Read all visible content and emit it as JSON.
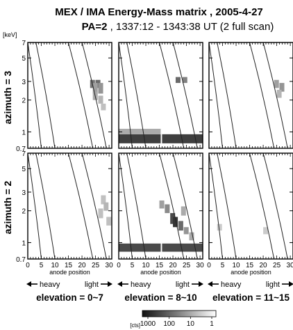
{
  "chart_data": {
    "type": "heatmap",
    "title": "MEX / IMA  Energy-Mass matrix , 2005-4-27",
    "subtitle_bold": "PA=2",
    "subtitle_rest": " , 1337:12 - 1343:38 UT (2 full scan)",
    "y_unit": "[keV]",
    "y_ticks": [
      "7",
      "5",
      "3",
      "2",
      "1",
      "0.7"
    ],
    "y_tick_values": [
      7,
      5,
      3,
      2,
      1,
      0.7
    ],
    "y_scale": "log",
    "ylim": [
      0.7,
      7
    ],
    "x_ticks": [
      "0",
      "5",
      "10",
      "15",
      "20",
      "25",
      "30"
    ],
    "xlim": [
      0,
      31
    ],
    "xlabel": "anode position",
    "row_labels": [
      "azimuth = 3",
      "azimuth = 2"
    ],
    "column_labels": [
      "elevation = 0~7",
      "elevation = 8~10",
      "elevation = 11~15"
    ],
    "arrow_left": "heavy",
    "arrow_right": "light",
    "colorbar_unit": "[cts]",
    "colorbar_ticks": [
      "1000",
      "100",
      "10",
      "1"
    ],
    "grid": false,
    "panels": [
      {
        "row": "azimuth = 3",
        "column": "elevation = 0~7",
        "cells": [
          [
            23,
            2.9,
            2.6,
            3.1,
            0.55
          ],
          [
            25,
            2.9,
            2.6,
            3.1,
            0.6
          ],
          [
            24,
            2.6,
            2.3,
            2.9,
            0.35
          ],
          [
            26,
            2.6,
            2.3,
            2.9,
            0.4
          ],
          [
            24,
            2.2,
            2.0,
            2.4,
            0.3
          ],
          [
            26,
            2.0,
            1.85,
            2.2,
            0.25
          ],
          [
            27,
            1.7,
            1.6,
            1.85,
            0.2
          ]
        ]
      },
      {
        "row": "azimuth = 3",
        "column": "elevation = 8~10",
        "cells": [
          [
            0,
            0.88,
            0.78,
            0.95,
            0.8
          ],
          [
            16,
            0.88,
            0.78,
            0.95,
            0.8
          ],
          [
            0,
            1.0,
            0.95,
            1.07,
            0.3
          ],
          [
            21,
            3.1,
            2.9,
            3.3,
            0.6
          ],
          [
            23.5,
            3.1,
            2.9,
            3.3,
            0.5
          ]
        ]
      },
      {
        "row": "azimuth = 3",
        "column": "elevation = 11~15",
        "cells": [
          [
            24,
            2.9,
            2.6,
            3.1,
            0.35
          ],
          [
            26,
            2.7,
            2.4,
            2.9,
            0.4
          ],
          [
            25,
            2.3,
            2.1,
            2.5,
            0.25
          ]
        ]
      },
      {
        "row": "azimuth = 2",
        "column": "elevation = 0~7",
        "cells": [
          [
            27,
            2.5,
            2.3,
            2.8,
            0.2
          ],
          [
            28,
            2.2,
            2.0,
            2.4,
            0.25
          ],
          [
            26,
            1.9,
            1.7,
            2.1,
            0.2
          ],
          [
            29,
            1.6,
            1.45,
            1.75,
            0.2
          ]
        ]
      },
      {
        "row": "azimuth = 2",
        "column": "elevation = 8~10",
        "cells": [
          [
            0,
            0.9,
            0.82,
            0.98,
            0.75
          ],
          [
            16,
            0.9,
            0.82,
            0.98,
            0.75
          ],
          [
            17,
            2.1,
            1.9,
            2.3,
            0.45
          ],
          [
            19,
            1.7,
            1.5,
            1.9,
            0.75
          ],
          [
            20,
            1.55,
            1.4,
            1.75,
            0.85
          ],
          [
            22,
            1.45,
            1.3,
            1.6,
            0.6
          ],
          [
            15,
            2.3,
            2.1,
            2.5,
            0.35
          ],
          [
            23,
            2.0,
            1.8,
            2.2,
            0.3
          ],
          [
            24,
            1.3,
            1.2,
            1.4,
            0.4
          ],
          [
            26,
            1.15,
            1.05,
            1.25,
            0.3
          ]
        ]
      },
      {
        "row": "azimuth = 2",
        "column": "elevation = 11~15",
        "cells": [
          [
            3,
            1.4,
            1.3,
            1.5,
            0.15
          ],
          [
            20,
            1.3,
            1.2,
            1.4,
            0.15
          ]
        ]
      }
    ]
  }
}
